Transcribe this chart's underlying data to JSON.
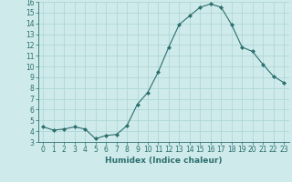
{
  "x": [
    0,
    1,
    2,
    3,
    4,
    5,
    6,
    7,
    8,
    9,
    10,
    11,
    12,
    13,
    14,
    15,
    16,
    17,
    18,
    19,
    20,
    21,
    22,
    23
  ],
  "y": [
    4.4,
    4.1,
    4.2,
    4.4,
    4.2,
    3.3,
    3.6,
    3.7,
    4.5,
    6.5,
    7.6,
    9.5,
    11.8,
    13.9,
    14.7,
    15.5,
    15.8,
    15.5,
    13.9,
    11.8,
    11.4,
    10.2,
    9.1,
    8.5
  ],
  "line_color": "#2d6e6e",
  "marker": "D",
  "marker_size": 2,
  "bg_color": "#ceeaea",
  "grid_color": "#b0d8d8",
  "xlabel": "Humidex (Indice chaleur)",
  "ylim": [
    3,
    16
  ],
  "xlim": [
    -0.5,
    23.5
  ],
  "yticks": [
    3,
    4,
    5,
    6,
    7,
    8,
    9,
    10,
    11,
    12,
    13,
    14,
    15,
    16
  ],
  "xticks": [
    0,
    1,
    2,
    3,
    4,
    5,
    6,
    7,
    8,
    9,
    10,
    11,
    12,
    13,
    14,
    15,
    16,
    17,
    18,
    19,
    20,
    21,
    22,
    23
  ],
  "xtick_labels": [
    "0",
    "1",
    "2",
    "3",
    "4",
    "5",
    "6",
    "7",
    "8",
    "9",
    "10",
    "11",
    "12",
    "13",
    "14",
    "15",
    "16",
    "17",
    "18",
    "19",
    "20",
    "21",
    "22",
    "23"
  ],
  "ytick_labels": [
    "3",
    "4",
    "5",
    "6",
    "7",
    "8",
    "9",
    "10",
    "11",
    "12",
    "13",
    "14",
    "15",
    "16"
  ],
  "text_color": "#2d6e6e",
  "label_fontsize": 6.5,
  "tick_fontsize": 5.5
}
